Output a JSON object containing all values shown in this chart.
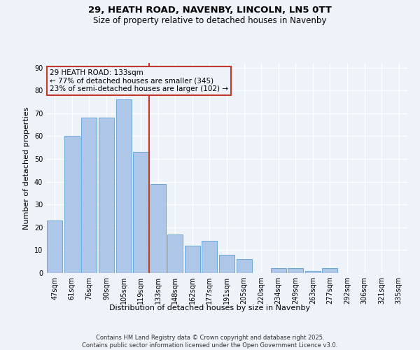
{
  "title1": "29, HEATH ROAD, NAVENBY, LINCOLN, LN5 0TT",
  "title2": "Size of property relative to detached houses in Navenby",
  "xlabel": "Distribution of detached houses by size in Navenby",
  "ylabel": "Number of detached properties",
  "categories": [
    "47sqm",
    "61sqm",
    "76sqm",
    "90sqm",
    "105sqm",
    "119sqm",
    "133sqm",
    "148sqm",
    "162sqm",
    "177sqm",
    "191sqm",
    "205sqm",
    "220sqm",
    "234sqm",
    "249sqm",
    "263sqm",
    "277sqm",
    "292sqm",
    "306sqm",
    "321sqm",
    "335sqm"
  ],
  "values": [
    23,
    60,
    68,
    68,
    76,
    53,
    39,
    17,
    12,
    14,
    8,
    6,
    0,
    2,
    2,
    1,
    2,
    0,
    0,
    0,
    0
  ],
  "bar_color": "#aec6e8",
  "bar_edge_color": "#5a9fd4",
  "highlight_index": 6,
  "vline_color": "#c0392b",
  "annotation_text": "29 HEATH ROAD: 133sqm\n← 77% of detached houses are smaller (345)\n23% of semi-detached houses are larger (102) →",
  "annotation_box_color": "#c0392b",
  "ylim": [
    0,
    92
  ],
  "yticks": [
    0,
    10,
    20,
    30,
    40,
    50,
    60,
    70,
    80,
    90
  ],
  "bg_color": "#eef2f9",
  "grid_color": "#ffffff",
  "footnote": "Contains HM Land Registry data © Crown copyright and database right 2025.\nContains public sector information licensed under the Open Government Licence v3.0.",
  "title_fontsize": 9.5,
  "subtitle_fontsize": 8.5,
  "axis_label_fontsize": 8,
  "tick_fontsize": 7,
  "annotation_fontsize": 7.5,
  "footnote_fontsize": 6
}
